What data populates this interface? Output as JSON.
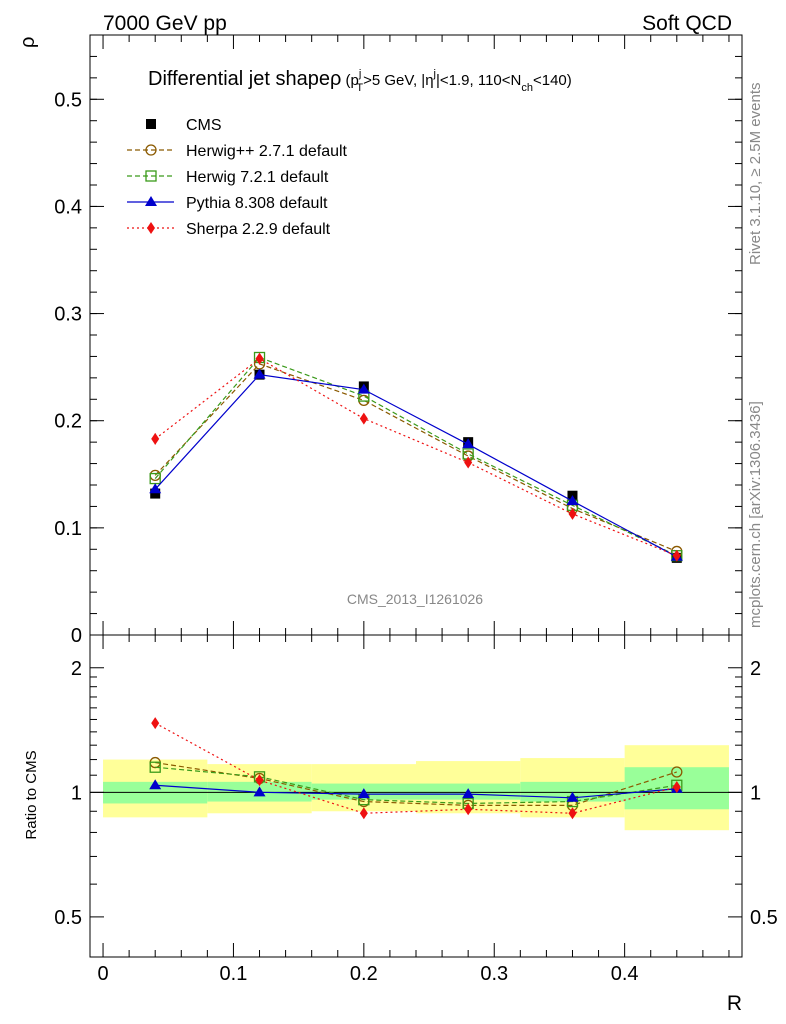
{
  "header": {
    "left": "7000 GeV pp",
    "right": "Soft QCD"
  },
  "side": {
    "rivet": "Rivet 3.1.10, ≥ 2.5M events",
    "mcplots": "mcplots.cern.ch [arXiv:1306.3436]"
  },
  "watermark": "CMS_2013_I1261026",
  "chart_data": [
    {
      "type": "line",
      "panel": "main",
      "title": {
        "lead": "Differential jet shape",
        "rho": "ρ",
        "p1": " (p",
        "p1_sup": "j",
        "p1_sub": "T",
        "p2": ">5 GeV, |η",
        "p2_sup": "j",
        "p3": "|<1.9, 110<N",
        "p3_sub": "ch",
        "p4": "<140)"
      },
      "ylabel": "ρ",
      "xlabel": "R",
      "xlim": [
        -0.01,
        0.49
      ],
      "ylim": [
        0,
        0.56
      ],
      "yticks": [
        0,
        0.1,
        0.2,
        0.3,
        0.4,
        0.5
      ],
      "ytick_labels": [
        "0",
        "0.1",
        "0.2",
        "0.3",
        "0.4",
        "0.5"
      ],
      "x": [
        0.04,
        0.12,
        0.2,
        0.28,
        0.36,
        0.44
      ],
      "series": [
        {
          "name": "CMS",
          "color": "#000000",
          "marker": "square-filled",
          "line": "none",
          "values": [
            0.132,
            0.243,
            0.232,
            0.18,
            0.13,
            0.072
          ],
          "errors": [
            0.004,
            0.004,
            0.003,
            0.003,
            0.003,
            0.002
          ]
        },
        {
          "name": "Herwig++ 2.7.1 default",
          "color": "#8b5a00",
          "marker": "circle-open",
          "line": "dashed",
          "values": [
            0.149,
            0.253,
            0.219,
            0.167,
            0.118,
            0.078
          ]
        },
        {
          "name": "Herwig 7.2.1 default",
          "color": "#3a9a1a",
          "marker": "square-open",
          "line": "dashed",
          "values": [
            0.146,
            0.259,
            0.223,
            0.169,
            0.121,
            0.074
          ]
        },
        {
          "name": "Pythia 8.308 default",
          "color": "#0000cc",
          "marker": "triangle-filled",
          "line": "solid",
          "values": [
            0.136,
            0.243,
            0.229,
            0.178,
            0.125,
            0.073
          ]
        },
        {
          "name": "Sherpa 2.2.9 default",
          "color": "#ee1111",
          "marker": "diamond-filled",
          "line": "dotted",
          "values": [
            0.183,
            0.258,
            0.202,
            0.161,
            0.113,
            0.074
          ],
          "errors": [
            0.005,
            0.004,
            0.003,
            0.003,
            0.003,
            0.002
          ]
        }
      ]
    },
    {
      "type": "line",
      "panel": "ratio",
      "ylabel": "Ratio to CMS",
      "xlabel": "R",
      "scale": "log",
      "ylim": [
        0.4,
        2.4
      ],
      "yticks": [
        0.5,
        1,
        2
      ],
      "ytick_labels": [
        "0.5",
        "1",
        "2"
      ],
      "xticks": [
        0,
        0.1,
        0.2,
        0.3,
        0.4
      ],
      "xtick_labels": [
        "0",
        "0.1",
        "0.2",
        "0.3",
        "0.4"
      ],
      "x": [
        0.04,
        0.12,
        0.2,
        0.28,
        0.36,
        0.44
      ],
      "bands": {
        "bin_edges": [
          0,
          0.08,
          0.16,
          0.24,
          0.32,
          0.4,
          0.48
        ],
        "inner": {
          "color": "#99ff99",
          "lo": [
            0.94,
            0.95,
            0.96,
            0.96,
            0.95,
            0.91
          ],
          "hi": [
            1.06,
            1.06,
            1.05,
            1.05,
            1.06,
            1.15
          ]
        },
        "outer": {
          "color": "#ffff99",
          "lo": [
            0.87,
            0.89,
            0.9,
            0.89,
            0.87,
            0.81
          ],
          "hi": [
            1.2,
            1.17,
            1.17,
            1.19,
            1.21,
            1.3
          ]
        }
      },
      "series": [
        {
          "name": "Herwig++ 2.7.1 default",
          "color": "#8b5a00",
          "marker": "circle-open",
          "line": "dashed",
          "values": [
            1.18,
            1.08,
            0.95,
            0.93,
            0.93,
            1.12
          ]
        },
        {
          "name": "Herwig 7.2.1 default",
          "color": "#3a9a1a",
          "marker": "square-open",
          "line": "dashed",
          "values": [
            1.15,
            1.09,
            0.96,
            0.94,
            0.95,
            1.04
          ]
        },
        {
          "name": "Pythia 8.308 default",
          "color": "#0000cc",
          "marker": "triangle-filled",
          "line": "solid",
          "values": [
            1.04,
            1.0,
            0.99,
            0.99,
            0.97,
            1.02
          ]
        },
        {
          "name": "Sherpa 2.2.9 default",
          "color": "#ee1111",
          "marker": "diamond-filled",
          "line": "dotted",
          "values": [
            1.47,
            1.07,
            0.89,
            0.91,
            0.89,
            1.03
          ],
          "errors": [
            0.04,
            0.02,
            0.015,
            0.015,
            0.015,
            0.02
          ]
        }
      ]
    }
  ]
}
